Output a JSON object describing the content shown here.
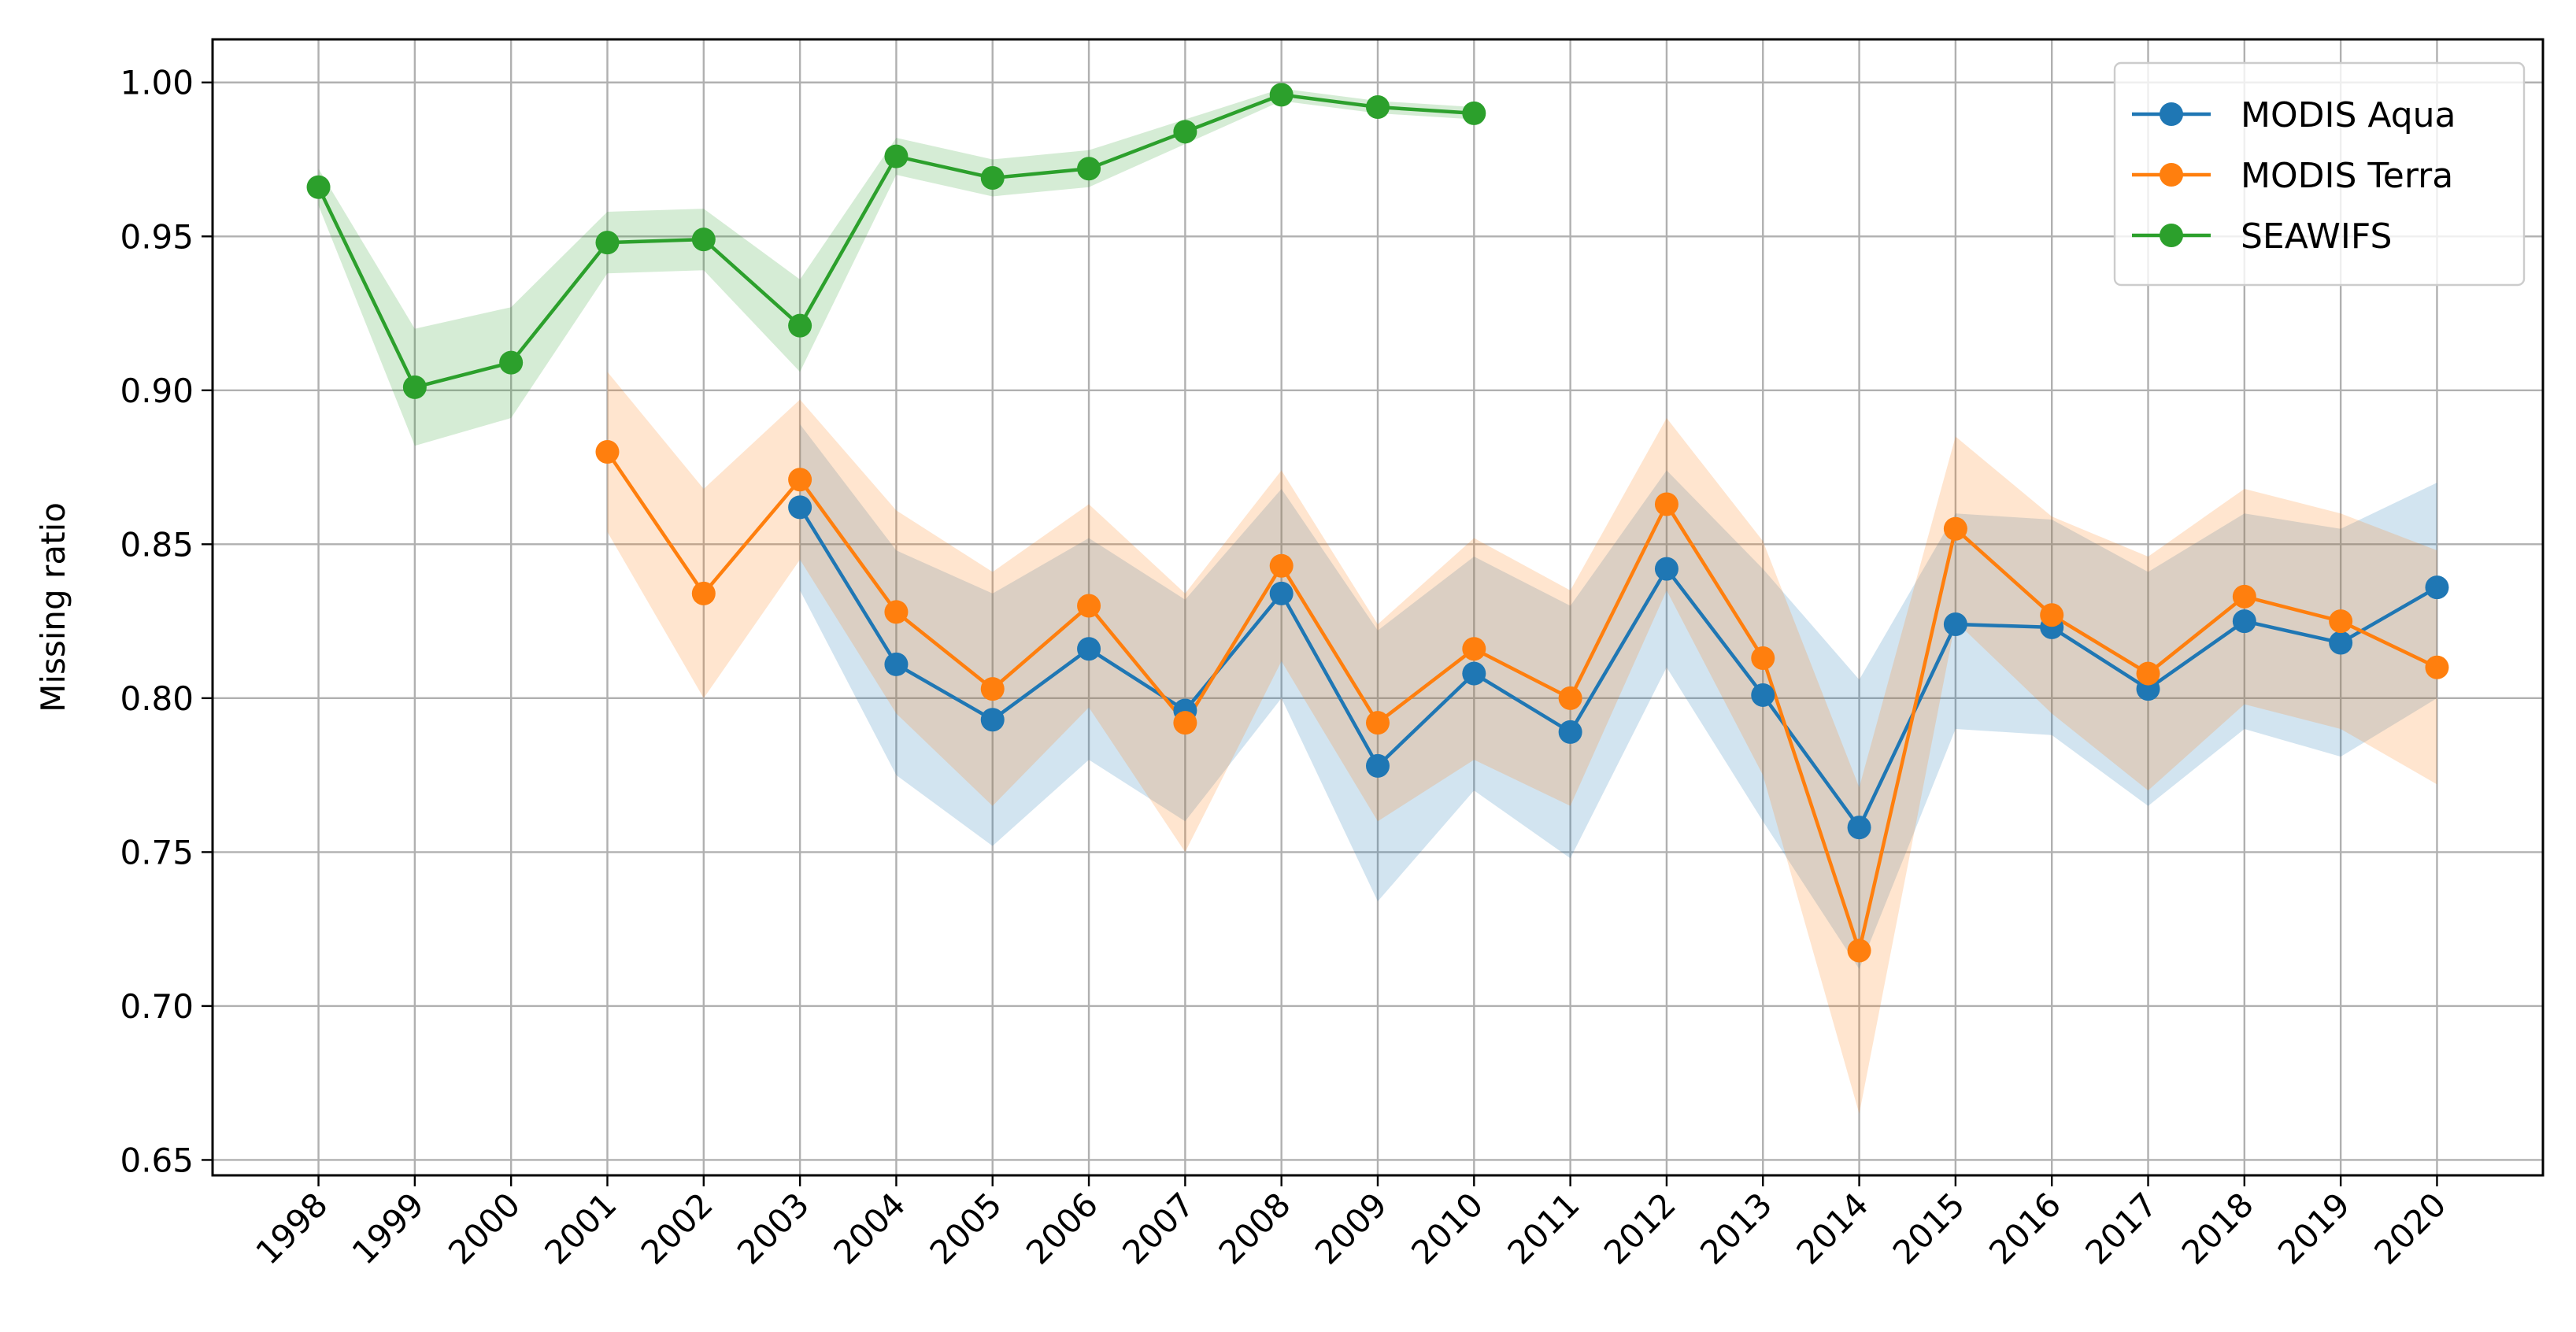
{
  "chart_data": {
    "type": "line",
    "title": "",
    "xlabel": "",
    "ylabel": "Missing ratio",
    "x": [
      1998,
      1999,
      2000,
      2001,
      2002,
      2003,
      2004,
      2005,
      2006,
      2007,
      2008,
      2009,
      2010,
      2011,
      2012,
      2013,
      2014,
      2015,
      2016,
      2017,
      2018,
      2019,
      2020
    ],
    "xlim": [
      1996.9,
      2021.1
    ],
    "ylim": [
      0.645,
      1.014
    ],
    "yticks": [
      0.65,
      0.7,
      0.75,
      0.8,
      0.85,
      0.9,
      0.95,
      1.0
    ],
    "ytick_labels": [
      "0.65",
      "0.70",
      "0.75",
      "0.80",
      "0.85",
      "0.90",
      "0.95",
      "1.00"
    ],
    "grid": true,
    "legend_position": "top-right",
    "series": [
      {
        "name": "MODIS Aqua",
        "color": "#1f77b4",
        "x": [
          2003,
          2004,
          2005,
          2006,
          2007,
          2008,
          2009,
          2010,
          2011,
          2012,
          2013,
          2014,
          2015,
          2016,
          2017,
          2018,
          2019,
          2020
        ],
        "values": [
          0.862,
          0.811,
          0.793,
          0.816,
          0.796,
          0.834,
          0.778,
          0.808,
          0.789,
          0.842,
          0.801,
          0.758,
          0.824,
          0.823,
          0.803,
          0.825,
          0.818,
          0.836
        ],
        "lower": [
          0.835,
          0.775,
          0.752,
          0.78,
          0.76,
          0.8,
          0.734,
          0.77,
          0.748,
          0.81,
          0.76,
          0.712,
          0.79,
          0.788,
          0.765,
          0.79,
          0.781,
          0.8
        ],
        "upper": [
          0.889,
          0.848,
          0.834,
          0.852,
          0.832,
          0.868,
          0.822,
          0.846,
          0.83,
          0.874,
          0.842,
          0.806,
          0.86,
          0.858,
          0.841,
          0.86,
          0.855,
          0.87
        ]
      },
      {
        "name": "MODIS Terra",
        "color": "#ff7f0e",
        "x": [
          2001,
          2002,
          2003,
          2004,
          2005,
          2006,
          2007,
          2008,
          2009,
          2010,
          2011,
          2012,
          2013,
          2014,
          2015,
          2016,
          2017,
          2018,
          2019,
          2020
        ],
        "values": [
          0.88,
          0.834,
          0.871,
          0.828,
          0.803,
          0.83,
          0.792,
          0.843,
          0.792,
          0.816,
          0.8,
          0.863,
          0.813,
          0.718,
          0.855,
          0.827,
          0.808,
          0.833,
          0.825,
          0.81
        ],
        "lower": [
          0.854,
          0.8,
          0.845,
          0.795,
          0.765,
          0.797,
          0.75,
          0.812,
          0.76,
          0.78,
          0.765,
          0.835,
          0.775,
          0.665,
          0.825,
          0.795,
          0.77,
          0.798,
          0.79,
          0.772
        ],
        "upper": [
          0.906,
          0.868,
          0.897,
          0.861,
          0.841,
          0.863,
          0.834,
          0.874,
          0.824,
          0.852,
          0.835,
          0.891,
          0.851,
          0.771,
          0.885,
          0.859,
          0.846,
          0.868,
          0.86,
          0.848
        ]
      },
      {
        "name": "SEAWIFS",
        "color": "#2ca02c",
        "x": [
          1998,
          1999,
          2000,
          2001,
          2002,
          2003,
          2004,
          2005,
          2006,
          2007,
          2008,
          2009,
          2010
        ],
        "values": [
          0.966,
          0.901,
          0.909,
          0.948,
          0.949,
          0.921,
          0.976,
          0.969,
          0.972,
          0.984,
          0.996,
          0.992,
          0.99
        ],
        "lower": [
          0.96,
          0.882,
          0.891,
          0.938,
          0.939,
          0.906,
          0.97,
          0.963,
          0.966,
          0.98,
          0.994,
          0.99,
          0.988
        ],
        "upper": [
          0.972,
          0.92,
          0.927,
          0.958,
          0.959,
          0.936,
          0.982,
          0.975,
          0.978,
          0.988,
          0.998,
          0.994,
          0.992
        ]
      }
    ]
  }
}
